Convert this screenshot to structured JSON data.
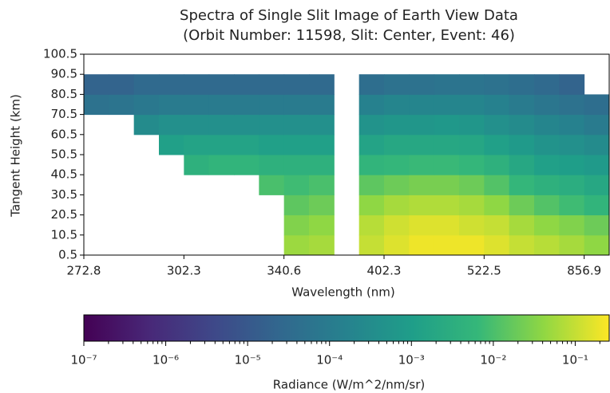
{
  "chart_data": {
    "type": "heatmap",
    "title": "Spectra of Single Slit Image of Earth View Data",
    "subtitle": "(Orbit Number: 11598, Slit: Center, Event: 46)",
    "x_label": "Wavelength (nm)",
    "y_label": "Tangent Height (km)",
    "colorbar_label": "Radiance (W/m^2/nm/sr)",
    "x": [
      272.8,
      280,
      288,
      295,
      302.3,
      312,
      321,
      331,
      340.6,
      355,
      370,
      386,
      402.3,
      432,
      462,
      492,
      522.5,
      600,
      690,
      770,
      856.9
    ],
    "y": [
      0.5,
      10.5,
      20.5,
      30.5,
      40.5,
      50.5,
      60.5,
      70.5,
      80.5,
      90.5
    ],
    "values": [
      [
        null,
        null,
        null,
        null,
        null,
        null,
        null,
        null,
        0.05,
        0.06,
        null,
        0.1,
        0.15,
        0.2,
        0.2,
        0.2,
        0.15,
        0.1,
        0.08,
        0.06,
        0.04
      ],
      [
        null,
        null,
        null,
        null,
        null,
        null,
        null,
        null,
        0.03,
        0.04,
        null,
        0.08,
        0.12,
        0.15,
        0.15,
        0.12,
        0.1,
        0.06,
        0.04,
        0.03,
        0.02
      ],
      [
        null,
        null,
        null,
        null,
        null,
        null,
        null,
        null,
        0.015,
        0.02,
        null,
        0.04,
        0.06,
        0.07,
        0.07,
        0.06,
        0.04,
        0.02,
        0.012,
        0.008,
        0.005
      ],
      [
        null,
        null,
        null,
        null,
        null,
        null,
        null,
        0.01,
        0.008,
        0.01,
        null,
        0.015,
        0.02,
        0.025,
        0.025,
        0.02,
        0.012,
        0.006,
        0.004,
        0.003,
        0.002
      ],
      [
        null,
        null,
        null,
        null,
        0.004,
        0.005,
        0.005,
        0.004,
        0.004,
        0.004,
        null,
        0.005,
        0.006,
        0.007,
        0.007,
        0.006,
        0.004,
        0.002,
        0.0012,
        0.001,
        0.0008
      ],
      [
        null,
        null,
        null,
        0.0012,
        0.0015,
        0.0015,
        0.0015,
        0.0012,
        0.0012,
        0.0012,
        null,
        0.0015,
        0.002,
        0.002,
        0.002,
        0.0018,
        0.0012,
        0.0008,
        0.0005,
        0.0004,
        0.0003
      ],
      [
        null,
        null,
        0.0003,
        0.0004,
        0.0004,
        0.0004,
        0.0004,
        0.0004,
        0.0004,
        0.0004,
        null,
        0.0005,
        0.0006,
        0.0006,
        0.0007,
        0.0006,
        0.0004,
        0.0003,
        0.0002,
        0.00015,
        0.0001
      ],
      [
        5e-05,
        6e-05,
        8e-05,
        0.0001,
        0.0001,
        0.0001,
        0.0001,
        0.0001,
        0.0001,
        0.0001,
        null,
        0.00015,
        0.0002,
        0.0002,
        0.0002,
        0.0002,
        0.00015,
        0.0001,
        7e-05,
        5e-05,
        4e-05
      ],
      [
        2e-05,
        2e-05,
        3e-05,
        3e-05,
        3e-05,
        3e-05,
        3e-05,
        3e-05,
        3e-05,
        3e-05,
        null,
        4e-05,
        5e-05,
        5e-05,
        6e-05,
        6e-05,
        5e-05,
        4e-05,
        3e-05,
        2e-05,
        null
      ],
      [
        null,
        null,
        null,
        null,
        null,
        null,
        null,
        null,
        null,
        null,
        null,
        null,
        null,
        null,
        null,
        null,
        null,
        null,
        null,
        null,
        null
      ]
    ],
    "xticks": [
      272.8,
      302.3,
      340.6,
      402.3,
      522.5,
      856.9
    ],
    "ylim": [
      0.5,
      100.5
    ],
    "yticks": [
      0.5,
      10.5,
      20.5,
      30.5,
      40.5,
      50.5,
      60.5,
      70.5,
      80.5,
      90.5,
      100.5
    ],
    "colormap": "viridis",
    "color_scale": "log",
    "clim": [
      1e-07,
      0.26
    ],
    "cticks": [
      {
        "value": 1e-07,
        "label": "10⁻⁷"
      },
      {
        "value": 1e-06,
        "label": "10⁻⁶"
      },
      {
        "value": 1e-05,
        "label": "10⁻⁵"
      },
      {
        "value": 0.0001,
        "label": "10⁻⁴"
      },
      {
        "value": 0.001,
        "label": "10⁻³"
      },
      {
        "value": 0.01,
        "label": "10⁻²"
      },
      {
        "value": 0.1,
        "label": "10⁻¹"
      }
    ]
  }
}
